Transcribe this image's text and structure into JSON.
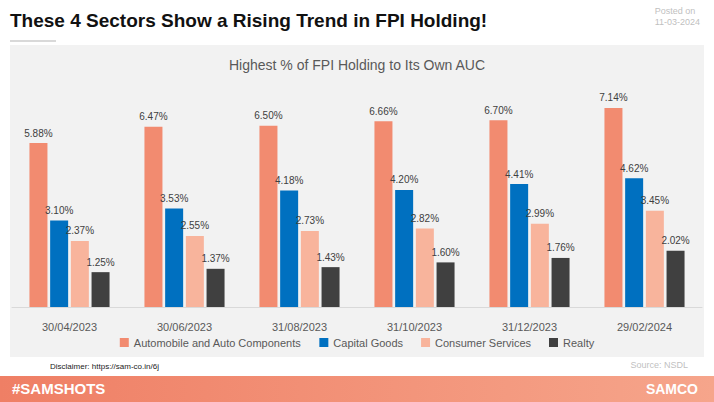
{
  "header": {
    "title": "These 4 Sectors Show a Rising Trend in FPI Holding!",
    "posted_label": "Posted on",
    "posted_date": "11-03-2024"
  },
  "footer": {
    "disclaimer": "Disclaimer: https://sam-co.in/6j",
    "source": "Source: NSDL",
    "brand": "#SAMSHOTS",
    "logo": "SAMCO"
  },
  "chart_data": {
    "type": "bar",
    "title": "Highest % of FPI Holding to Its Own AUC",
    "categories": [
      "30/04/2023",
      "30/06/2023",
      "31/08/2023",
      "31/10/2023",
      "31/12/2023",
      "29/02/2024"
    ],
    "series": [
      {
        "name": "Automobile and Auto Components",
        "color": "#f28b70",
        "values": [
          5.88,
          6.47,
          6.5,
          6.66,
          6.7,
          7.14
        ],
        "value_labels": [
          "5.88%",
          "6.47%",
          "6.50%",
          "6.66%",
          "6.70%",
          "7.14%"
        ]
      },
      {
        "name": "Capital Goods",
        "color": "#0070c0",
        "values": [
          3.1,
          3.53,
          4.18,
          4.2,
          4.41,
          4.62
        ],
        "value_labels": [
          "3.10%",
          "3.53%",
          "4.18%",
          "4.20%",
          "4.41%",
          "4.62%"
        ]
      },
      {
        "name": "Consumer Services",
        "color": "#f8b49c",
        "values": [
          2.37,
          2.55,
          2.73,
          2.82,
          2.99,
          3.45
        ],
        "value_labels": [
          "2.37%",
          "2.55%",
          "2.73%",
          "2.82%",
          "2.99%",
          "3.45%"
        ]
      },
      {
        "name": "Realty",
        "color": "#404040",
        "values": [
          1.25,
          1.37,
          1.43,
          1.6,
          1.76,
          2.02
        ],
        "value_labels": [
          "1.25%",
          "1.37%",
          "1.43%",
          "1.60%",
          "1.76%",
          "2.02%"
        ]
      }
    ],
    "ylim": [
      0,
      8
    ],
    "grid": false,
    "legend": "bottom",
    "data_labels": true,
    "tick_labels": "x"
  }
}
